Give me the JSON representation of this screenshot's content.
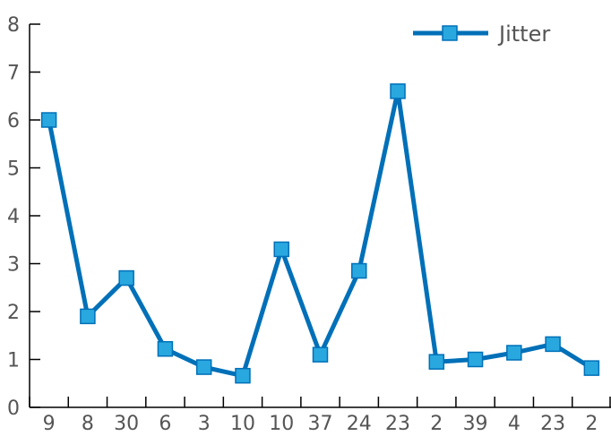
{
  "chart_data": {
    "type": "line",
    "categories": [
      "9",
      "8",
      "30",
      "6",
      "3",
      "10",
      "10",
      "37",
      "24",
      "23",
      "2",
      "39",
      "4",
      "23",
      "2"
    ],
    "series": [
      {
        "name": "Jitter",
        "values": [
          6.0,
          1.9,
          2.7,
          1.22,
          0.84,
          0.66,
          3.3,
          1.1,
          2.85,
          6.6,
          0.95,
          1.0,
          1.14,
          1.32,
          0.82
        ],
        "color": "#0070b8",
        "marker_color": "#29a8e0"
      }
    ],
    "ylim": [
      0,
      8
    ],
    "yticks": [
      0,
      1,
      2,
      3,
      4,
      5,
      6,
      7,
      8
    ],
    "grid": false,
    "legend": "top-right"
  }
}
